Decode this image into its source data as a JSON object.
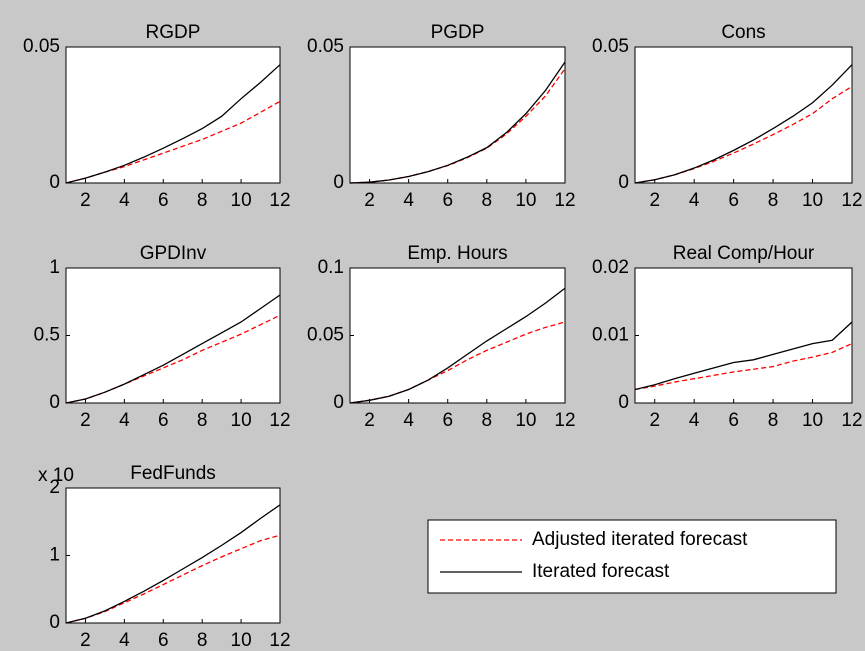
{
  "chart_data": [
    {
      "type": "line",
      "title": "RGDP",
      "x": [
        1,
        2,
        3,
        4,
        5,
        6,
        7,
        8,
        9,
        10,
        11,
        12
      ],
      "xlim": [
        1,
        12
      ],
      "xticks": [
        2,
        4,
        6,
        8,
        10,
        12
      ],
      "ylim": [
        0,
        0.05
      ],
      "yticks": [
        0,
        0.05
      ],
      "series": [
        {
          "name": "Adjusted iterated forecast",
          "color": "#ff0000",
          "style": "dashed",
          "values": [
            0,
            0.0018,
            0.004,
            0.006,
            0.0085,
            0.011,
            0.0135,
            0.016,
            0.019,
            0.022,
            0.026,
            0.03
          ]
        },
        {
          "name": "Iterated forecast",
          "color": "#000000",
          "style": "solid",
          "values": [
            0,
            0.0018,
            0.004,
            0.0065,
            0.0095,
            0.0128,
            0.0163,
            0.02,
            0.0245,
            0.031,
            0.037,
            0.0435
          ]
        }
      ]
    },
    {
      "type": "line",
      "title": "PGDP",
      "x": [
        1,
        2,
        3,
        4,
        5,
        6,
        7,
        8,
        9,
        10,
        11,
        12
      ],
      "xlim": [
        1,
        12
      ],
      "xticks": [
        2,
        4,
        6,
        8,
        10,
        12
      ],
      "ylim": [
        0,
        0.05
      ],
      "yticks": [
        0,
        0.05
      ],
      "series": [
        {
          "name": "Adjusted iterated forecast",
          "color": "#ff0000",
          "style": "dashed",
          "values": [
            0,
            0.0003,
            0.0011,
            0.0024,
            0.0042,
            0.0064,
            0.0093,
            0.0128,
            0.018,
            0.0245,
            0.032,
            0.042
          ]
        },
        {
          "name": "Iterated forecast",
          "color": "#000000",
          "style": "solid",
          "values": [
            0,
            0.0003,
            0.0011,
            0.0024,
            0.0042,
            0.0065,
            0.0095,
            0.013,
            0.0185,
            0.0255,
            0.034,
            0.0445
          ]
        }
      ]
    },
    {
      "type": "line",
      "title": "Cons",
      "x": [
        1,
        2,
        3,
        4,
        5,
        6,
        7,
        8,
        9,
        10,
        11,
        12
      ],
      "xlim": [
        1,
        12
      ],
      "xticks": [
        2,
        4,
        6,
        8,
        10,
        12
      ],
      "ylim": [
        0,
        0.05
      ],
      "yticks": [
        0,
        0.05
      ],
      "series": [
        {
          "name": "Adjusted iterated forecast",
          "color": "#ff0000",
          "style": "dashed",
          "values": [
            0,
            0.0012,
            0.003,
            0.0053,
            0.008,
            0.011,
            0.0143,
            0.0178,
            0.0215,
            0.0255,
            0.031,
            0.0355
          ]
        },
        {
          "name": "Iterated forecast",
          "color": "#000000",
          "style": "solid",
          "values": [
            0,
            0.0012,
            0.003,
            0.0055,
            0.0085,
            0.012,
            0.0158,
            0.02,
            0.0245,
            0.0295,
            0.036,
            0.0435
          ]
        }
      ]
    },
    {
      "type": "line",
      "title": "GPDInv",
      "x": [
        1,
        2,
        3,
        4,
        5,
        6,
        7,
        8,
        9,
        10,
        11,
        12
      ],
      "xlim": [
        1,
        12
      ],
      "xticks": [
        2,
        4,
        6,
        8,
        10,
        12
      ],
      "ylim": [
        0,
        1
      ],
      "yticks": [
        0,
        0.5,
        1
      ],
      "series": [
        {
          "name": "Adjusted iterated forecast",
          "color": "#ff0000",
          "style": "dashed",
          "values": [
            0,
            0.03,
            0.08,
            0.14,
            0.2,
            0.26,
            0.32,
            0.39,
            0.45,
            0.51,
            0.58,
            0.65
          ]
        },
        {
          "name": "Iterated forecast",
          "color": "#000000",
          "style": "solid",
          "values": [
            0,
            0.03,
            0.08,
            0.14,
            0.21,
            0.28,
            0.36,
            0.44,
            0.52,
            0.6,
            0.7,
            0.8
          ]
        }
      ]
    },
    {
      "type": "line",
      "title": "Emp. Hours",
      "x": [
        1,
        2,
        3,
        4,
        5,
        6,
        7,
        8,
        9,
        10,
        11,
        12
      ],
      "xlim": [
        1,
        12
      ],
      "xticks": [
        2,
        4,
        6,
        8,
        10,
        12
      ],
      "ylim": [
        0,
        0.1
      ],
      "yticks": [
        0,
        0.05,
        0.1
      ],
      "series": [
        {
          "name": "Adjusted iterated forecast",
          "color": "#ff0000",
          "style": "dashed",
          "values": [
            0,
            0.002,
            0.005,
            0.01,
            0.017,
            0.024,
            0.032,
            0.039,
            0.045,
            0.051,
            0.056,
            0.06
          ]
        },
        {
          "name": "Iterated forecast",
          "color": "#000000",
          "style": "solid",
          "values": [
            0,
            0.002,
            0.005,
            0.01,
            0.017,
            0.026,
            0.036,
            0.046,
            0.055,
            0.064,
            0.074,
            0.085
          ]
        }
      ]
    },
    {
      "type": "line",
      "title": "Real Comp/Hour",
      "x": [
        1,
        2,
        3,
        4,
        5,
        6,
        7,
        8,
        9,
        10,
        11,
        12
      ],
      "xlim": [
        1,
        12
      ],
      "xticks": [
        2,
        4,
        6,
        8,
        10,
        12
      ],
      "ylim": [
        0,
        0.02
      ],
      "yticks": [
        0,
        0.01,
        0.02
      ],
      "series": [
        {
          "name": "Adjusted iterated forecast",
          "color": "#ff0000",
          "style": "dashed",
          "values": [
            0.002,
            0.0025,
            0.0031,
            0.0036,
            0.0041,
            0.0046,
            0.005,
            0.0054,
            0.0062,
            0.0068,
            0.0075,
            0.0088
          ]
        },
        {
          "name": "Iterated forecast",
          "color": "#000000",
          "style": "solid",
          "values": [
            0.002,
            0.0027,
            0.0036,
            0.0044,
            0.0052,
            0.006,
            0.0064,
            0.0072,
            0.008,
            0.0088,
            0.0093,
            0.012
          ]
        }
      ]
    },
    {
      "type": "line",
      "title": "FedFunds",
      "exponent_label": "x 10",
      "x": [
        1,
        2,
        3,
        4,
        5,
        6,
        7,
        8,
        9,
        10,
        11,
        12
      ],
      "xlim": [
        1,
        12
      ],
      "xticks": [
        2,
        4,
        6,
        8,
        10,
        12
      ],
      "ylim": [
        0,
        2
      ],
      "yticks": [
        0,
        1,
        2
      ],
      "legend": true,
      "series": [
        {
          "name": "Adjusted iterated forecast",
          "color": "#ff0000",
          "style": "dashed",
          "values": [
            0,
            0.07,
            0.17,
            0.3,
            0.43,
            0.57,
            0.71,
            0.85,
            0.98,
            1.1,
            1.22,
            1.3
          ]
        },
        {
          "name": "Iterated forecast",
          "color": "#000000",
          "style": "solid",
          "values": [
            0,
            0.07,
            0.18,
            0.32,
            0.47,
            0.63,
            0.8,
            0.97,
            1.15,
            1.34,
            1.55,
            1.75
          ]
        }
      ]
    }
  ]
}
